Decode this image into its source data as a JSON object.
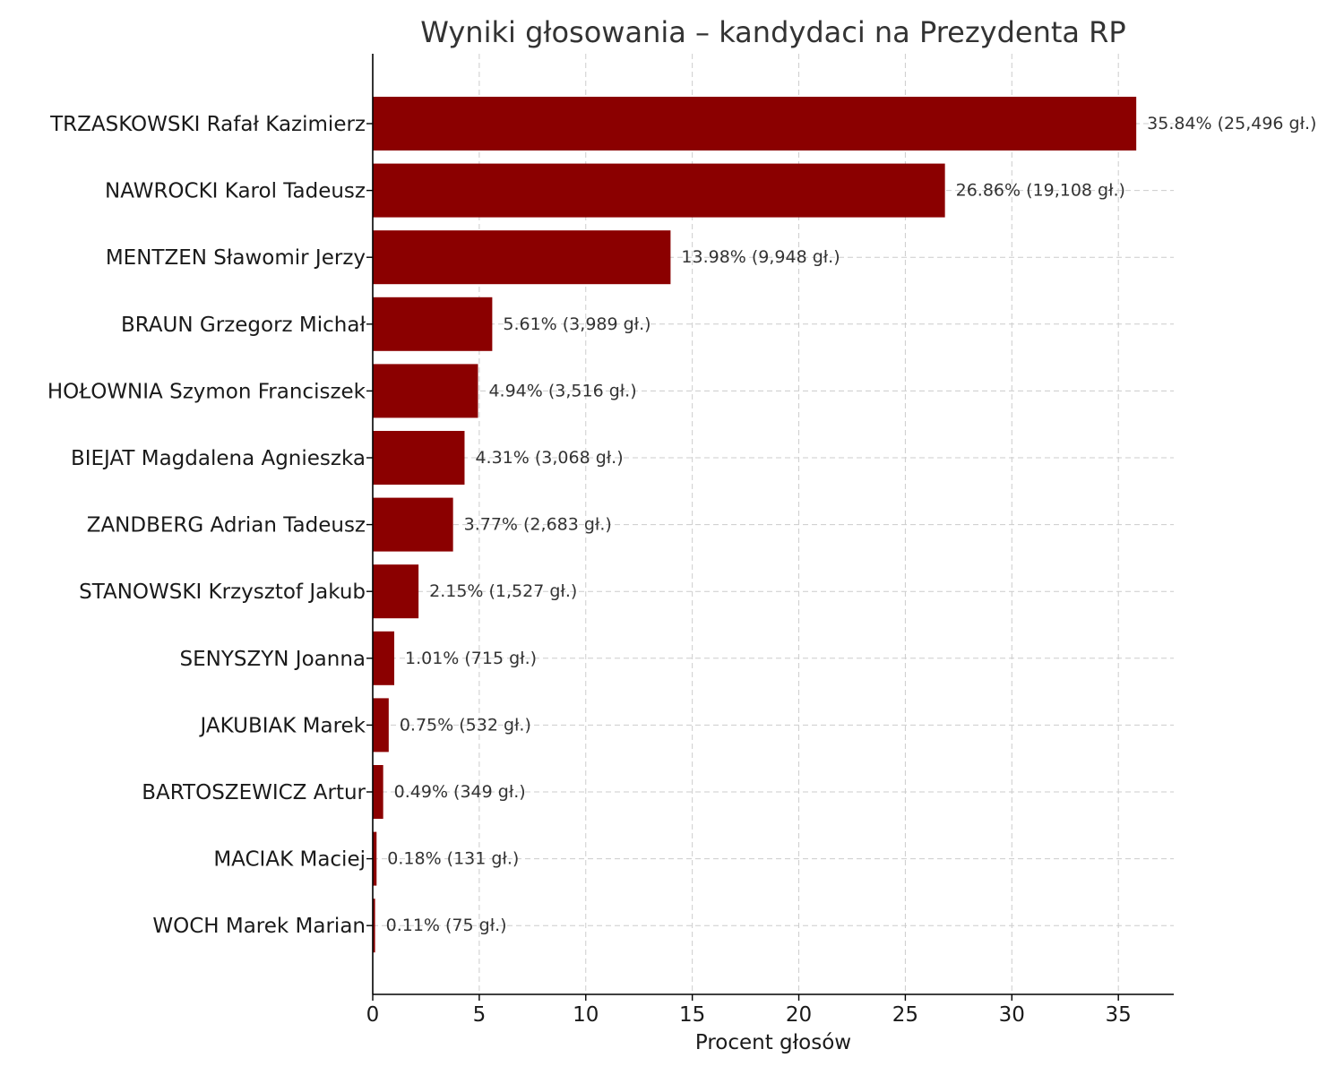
{
  "chart_data": {
    "type": "bar",
    "orientation": "horizontal",
    "title": "Wyniki głosowania – kandydaci na Prezydenta RP",
    "xlabel": "Procent głosów",
    "ylabel": "",
    "xlim": [
      0,
      37.6
    ],
    "xticks": [
      0,
      5,
      10,
      15,
      20,
      25,
      30,
      35
    ],
    "grid": true,
    "bar_color": "#8b0000",
    "categories": [
      "TRZASKOWSKI Rafał Kazimierz",
      "NAWROCKI Karol Tadeusz",
      "MENTZEN Sławomir Jerzy",
      "BRAUN Grzegorz Michał",
      "HOŁOWNIA Szymon Franciszek",
      "BIEJAT Magdalena Agnieszka",
      "ZANDBERG Adrian Tadeusz",
      "STANOWSKI Krzysztof Jakub",
      "SENYSZYN Joanna",
      "JAKUBIAK Marek",
      "BARTOSZEWICZ Artur",
      "MACIAK Maciej",
      "WOCH Marek Marian"
    ],
    "values": [
      35.84,
      26.86,
      13.98,
      5.61,
      4.94,
      4.31,
      3.77,
      2.15,
      1.01,
      0.75,
      0.49,
      0.18,
      0.11
    ],
    "votes": [
      25496,
      19108,
      9948,
      3989,
      3516,
      3068,
      2683,
      1527,
      715,
      532,
      349,
      131,
      75
    ],
    "data_labels": [
      "35.84% (25,496 gł.)",
      "26.86% (19,108 gł.)",
      "13.98% (9,948 gł.)",
      "5.61% (3,989 gł.)",
      "4.94% (3,516 gł.)",
      "4.31% (3,068 gł.)",
      "3.77% (2,683 gł.)",
      "2.15% (1,527 gł.)",
      "1.01% (715 gł.)",
      "0.75% (532 gł.)",
      "0.49% (349 gł.)",
      "0.18% (131 gł.)",
      "0.11% (75 gł.)"
    ]
  }
}
